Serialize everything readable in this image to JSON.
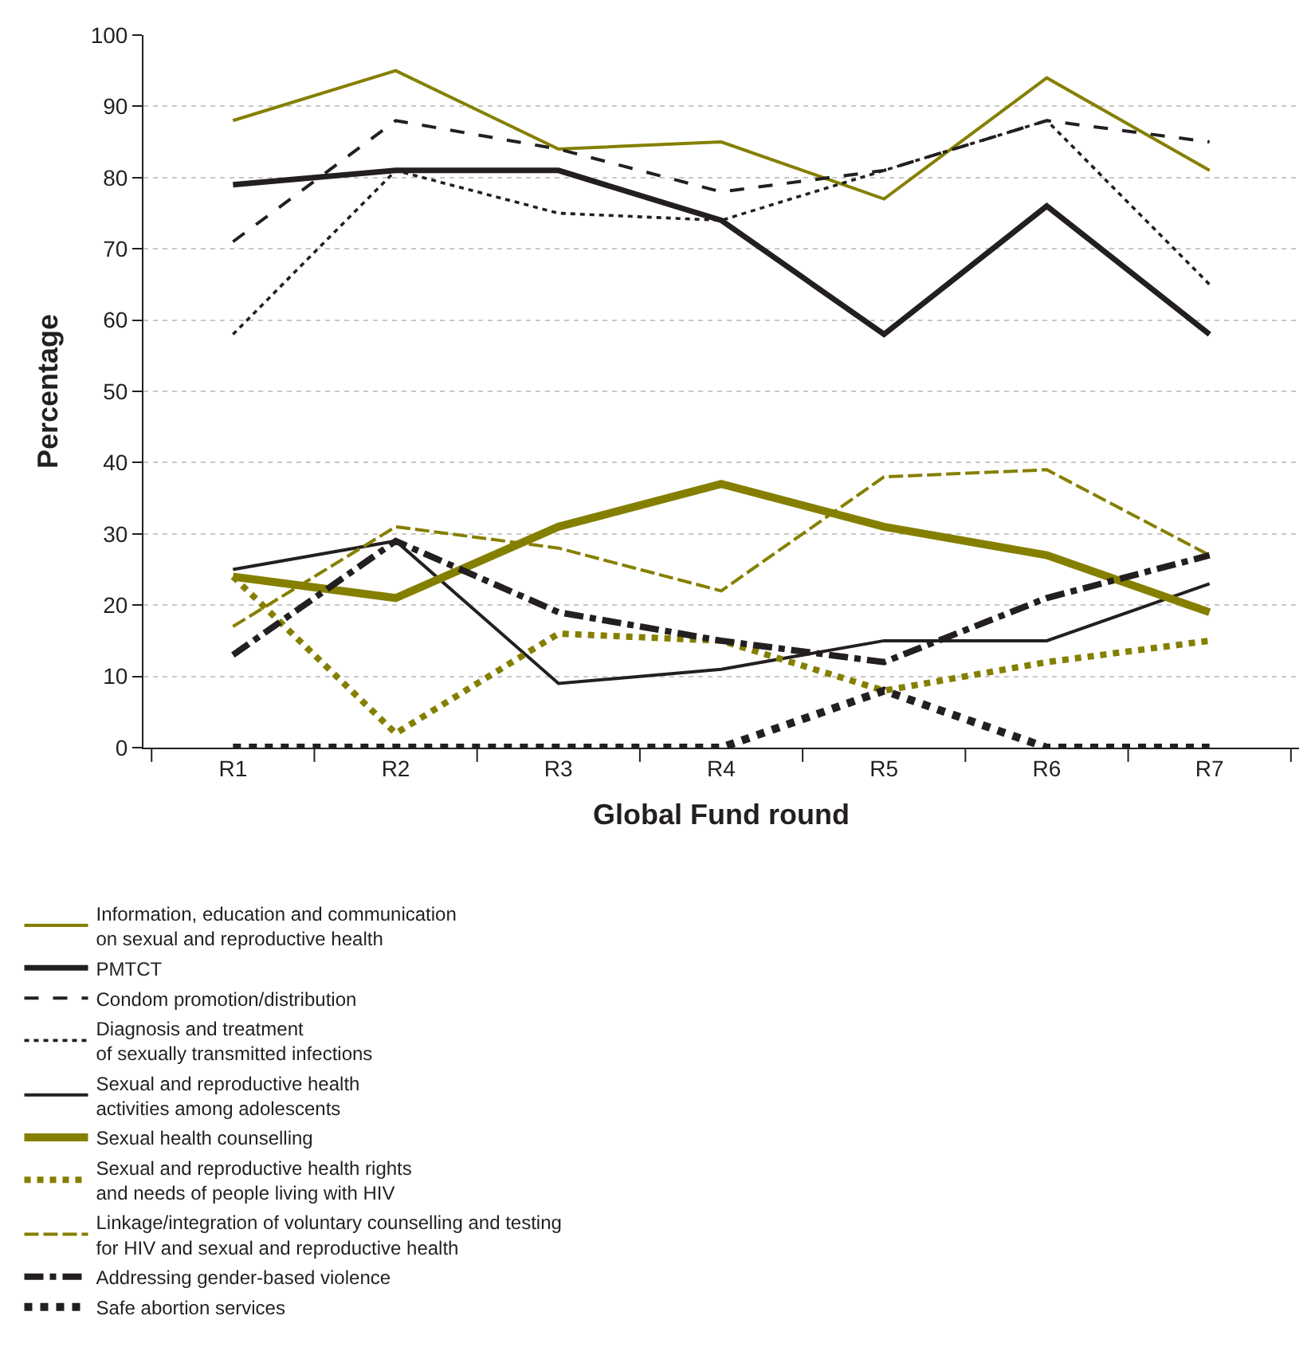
{
  "chart_data": {
    "type": "line",
    "xlabel": "Global Fund round",
    "ylabel": "Percentage",
    "categories": [
      "R1",
      "R2",
      "R3",
      "R4",
      "R5",
      "R6",
      "R7"
    ],
    "ylim": [
      0,
      100
    ],
    "yticks": [
      0,
      10,
      20,
      30,
      40,
      50,
      60,
      70,
      80,
      90,
      100
    ],
    "grid": "y",
    "legend": "bottom",
    "marker": "none",
    "series": [
      {
        "name": "Information, education and communication\non sexual and reproductive health",
        "color": "#857f00",
        "line_style": "solid",
        "values": [
          88,
          95,
          84,
          85,
          77,
          94,
          81
        ]
      },
      {
        "name": "PMTCT",
        "color": "#231f20",
        "line_style": "solid",
        "values": [
          79,
          81,
          81,
          74,
          58,
          76,
          58
        ]
      },
      {
        "name": "Condom promotion/distribution",
        "color": "#231f20",
        "line_style": "dashed",
        "values": [
          71,
          88,
          84,
          78,
          81,
          88,
          85
        ]
      },
      {
        "name": "Diagnosis and treatment\nof sexually transmitted infections",
        "color": "#231f20",
        "line_style": "dotted",
        "values": [
          58,
          81,
          75,
          74,
          81,
          88,
          65
        ]
      },
      {
        "name": "Sexual and reproductive health\nactivities among adolescents",
        "color": "#231f20",
        "line_style": "solid",
        "values": [
          25,
          29,
          9,
          11,
          15,
          15,
          23
        ]
      },
      {
        "name": "Sexual health counselling",
        "color": "#857f00",
        "line_style": "solid",
        "values": [
          24,
          21,
          31,
          37,
          31,
          27,
          19
        ]
      },
      {
        "name": "Sexual and reproductive health rights\nand needs of people living with HIV",
        "color": "#857f00",
        "line_style": "dotted",
        "values": [
          24,
          2,
          16,
          15,
          8,
          12,
          15
        ]
      },
      {
        "name": "Linkage/integration of voluntary counselling and testing\nfor HIV and sexual and reproductive health",
        "color": "#857f00",
        "line_style": "dashed",
        "values": [
          17,
          31,
          28,
          22,
          38,
          39,
          27
        ]
      },
      {
        "name": "Addressing gender-based violence",
        "color": "#231f20",
        "line_style": "dotted",
        "values": [
          13,
          29,
          19,
          15,
          12,
          21,
          27
        ]
      },
      {
        "name": "Safe abortion services",
        "color": "#231f20",
        "line_style": "dotted",
        "values": [
          0,
          0,
          0,
          0,
          8,
          0,
          0
        ]
      }
    ]
  }
}
